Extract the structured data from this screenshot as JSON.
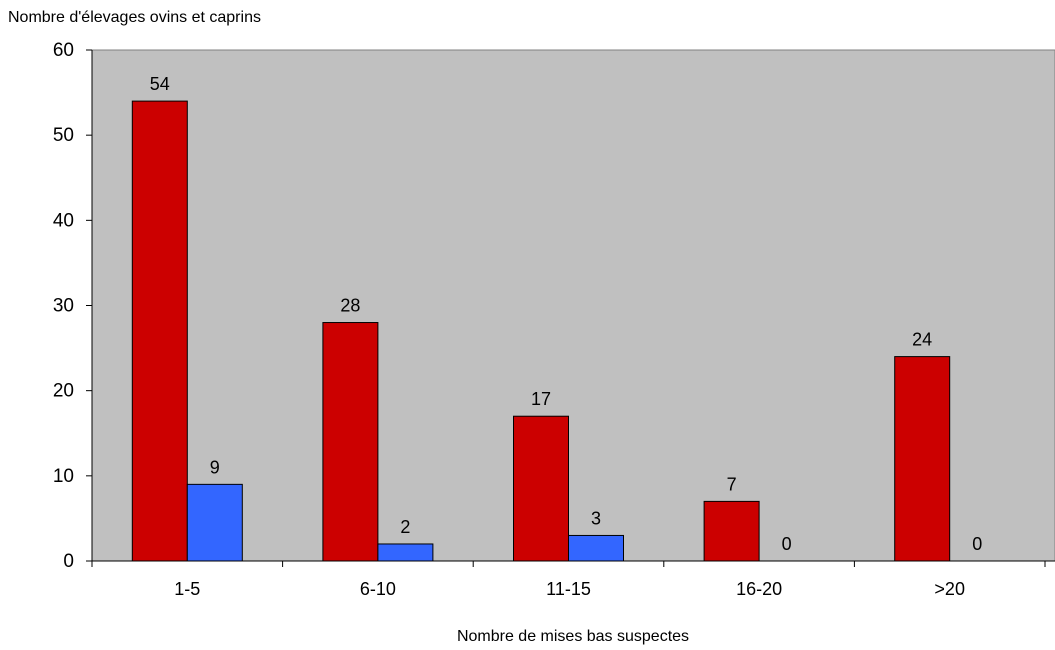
{
  "chart_data": {
    "type": "bar",
    "title": "",
    "ylabel": "Nombre d'élevages ovins et caprins",
    "xlabel": "Nombre de mises bas suspectes",
    "categories": [
      "1-5",
      "6-10",
      "11-15",
      "16-20",
      ">20"
    ],
    "series": [
      {
        "values": [
          54,
          28,
          17,
          7,
          24
        ],
        "color": "#cc0000"
      },
      {
        "values": [
          9,
          2,
          3,
          0,
          0
        ],
        "color": "#3366ff"
      }
    ],
    "ylim": [
      0,
      60
    ],
    "yticks": [
      0,
      10,
      20,
      30,
      40,
      50,
      60
    ],
    "grid": false,
    "plot_background": "#c0c0c0",
    "data_labels": true
  }
}
